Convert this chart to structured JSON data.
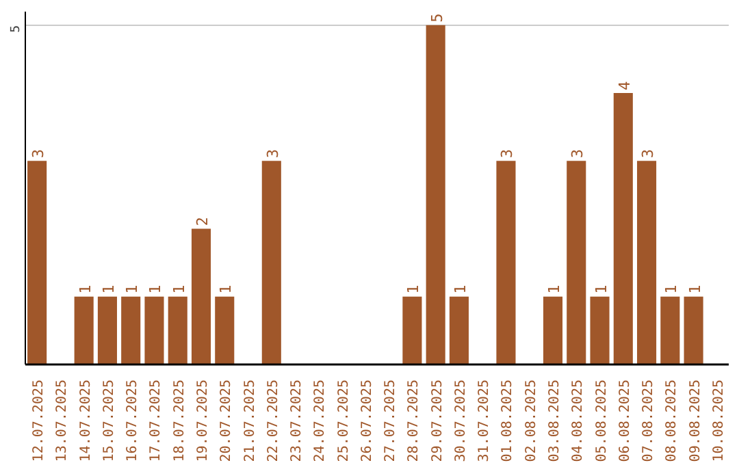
{
  "chart_data": {
    "type": "bar",
    "categories": [
      "12.07.2025",
      "13.07.2025",
      "14.07.2025",
      "15.07.2025",
      "16.07.2025",
      "17.07.2025",
      "18.07.2025",
      "19.07.2025",
      "20.07.2025",
      "21.07.2025",
      "22.07.2025",
      "23.07.2025",
      "24.07.2025",
      "25.07.2025",
      "26.07.2025",
      "27.07.2025",
      "28.07.2025",
      "29.07.2025",
      "30.07.2025",
      "31.07.2025",
      "01.08.2025",
      "02.08.2025",
      "03.08.2025",
      "04.08.2025",
      "05.08.2025",
      "06.08.2025",
      "07.08.2025",
      "08.08.2025",
      "09.08.2025",
      "10.08.2025"
    ],
    "values": [
      3,
      0,
      1,
      1,
      1,
      1,
      1,
      2,
      1,
      0,
      3,
      0,
      0,
      0,
      0,
      0,
      1,
      5,
      1,
      0,
      3,
      0,
      1,
      3,
      1,
      4,
      3,
      1,
      1,
      0
    ],
    "value_labels": [
      "3",
      null,
      "1",
      "1",
      "1",
      "1",
      "1",
      "2",
      "1",
      null,
      "3",
      null,
      null,
      null,
      null,
      null,
      "1",
      "5",
      "1",
      null,
      "3",
      null,
      "1",
      "3",
      "1",
      "4",
      "3",
      "1",
      "1",
      null
    ],
    "color": "#a0572a",
    "ylim": [
      0,
      5.2
    ],
    "yticks": [
      5
    ],
    "grid": "y"
  }
}
